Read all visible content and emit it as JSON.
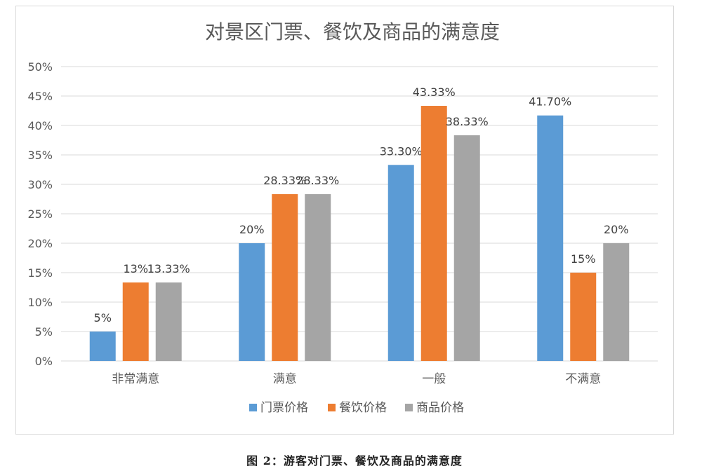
{
  "caption": "图 2：游客对门票、餐饮及商品的满意度",
  "colors": {
    "series": [
      "#5b9bd5",
      "#ed7d31",
      "#a5a5a5"
    ],
    "gridline": "#d9d9d9",
    "axis_text": "#595959",
    "title_text": "#595959",
    "label_text": "#404040"
  },
  "chart_data": {
    "type": "bar",
    "title": "对景区门票、餐饮及商品的满意度",
    "xlabel": "",
    "ylabel": "",
    "ylim": [
      0,
      50
    ],
    "y_ticks": [
      {
        "value": 0,
        "label": "0%"
      },
      {
        "value": 5,
        "label": "5%"
      },
      {
        "value": 10,
        "label": "10%"
      },
      {
        "value": 15,
        "label": "15%"
      },
      {
        "value": 20,
        "label": "20%"
      },
      {
        "value": 25,
        "label": "25%"
      },
      {
        "value": 30,
        "label": "30%"
      },
      {
        "value": 35,
        "label": "35%"
      },
      {
        "value": 40,
        "label": "40%"
      },
      {
        "value": 45,
        "label": "45%"
      },
      {
        "value": 50,
        "label": "50%"
      }
    ],
    "grid": true,
    "legend_position": "bottom",
    "categories": [
      "非常满意",
      "满意",
      "一般",
      "不满意"
    ],
    "series": [
      {
        "name": "门票价格",
        "values": [
          5,
          20,
          33.3,
          41.7
        ],
        "labels": [
          "5%",
          "20%",
          "33.30%",
          "41.70%"
        ]
      },
      {
        "name": "餐饮价格",
        "values": [
          13.33,
          28.33,
          43.33,
          15
        ],
        "labels": [
          "13%",
          "28.33%",
          "43.33%",
          "15%"
        ]
      },
      {
        "name": "商品价格",
        "values": [
          13.33,
          28.33,
          38.33,
          20
        ],
        "labels": [
          "13.33%",
          "28.33%",
          "38.33%",
          "20%"
        ]
      }
    ]
  }
}
